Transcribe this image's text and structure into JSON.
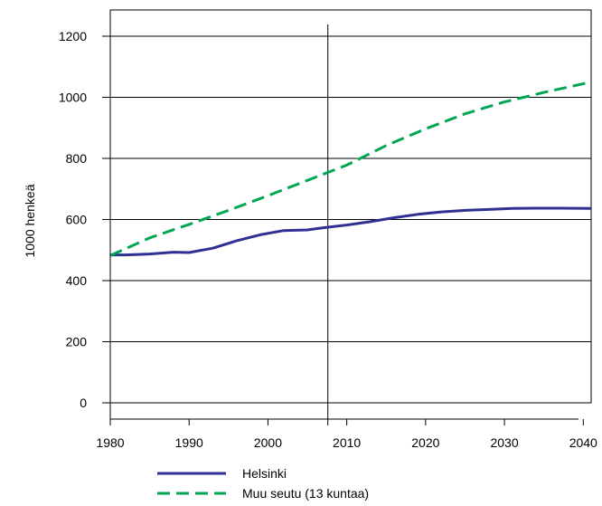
{
  "chart_data": {
    "type": "line",
    "title": "",
    "xlabel": "",
    "ylabel": "1000 henkeä",
    "xlim": [
      1980,
      2041
    ],
    "ylim": [
      0,
      1200
    ],
    "xticks": [
      1980,
      1990,
      2000,
      2010,
      2020,
      2030,
      2040
    ],
    "yticks": [
      0,
      200,
      400,
      600,
      800,
      1000,
      1200
    ],
    "grid": "horizontal",
    "reference_line_x": 2007.6,
    "legend_position": "bottom",
    "series": [
      {
        "name": "Helsinki",
        "color": "#2e3192",
        "style": "solid",
        "points": [
          [
            1980,
            484
          ],
          [
            1982,
            484
          ],
          [
            1985,
            487
          ],
          [
            1988,
            493
          ],
          [
            1990,
            492
          ],
          [
            1993,
            506
          ],
          [
            1996,
            530
          ],
          [
            1999,
            550
          ],
          [
            2002,
            564
          ],
          [
            2005,
            566
          ],
          [
            2007,
            573
          ],
          [
            2010,
            582
          ],
          [
            2013,
            593
          ],
          [
            2016,
            606
          ],
          [
            2019,
            617
          ],
          [
            2022,
            625
          ],
          [
            2025,
            630
          ],
          [
            2028,
            633
          ],
          [
            2031,
            636
          ],
          [
            2034,
            637
          ],
          [
            2037,
            637
          ],
          [
            2041,
            636
          ]
        ]
      },
      {
        "name": "Muu seutu (13 kuntaa)",
        "color": "#00a651",
        "style": "dashed",
        "points": [
          [
            1980,
            482
          ],
          [
            1985,
            540
          ],
          [
            1990,
            584
          ],
          [
            1995,
            630
          ],
          [
            2000,
            678
          ],
          [
            2005,
            728
          ],
          [
            2010,
            778
          ],
          [
            2015,
            842
          ],
          [
            2020,
            897
          ],
          [
            2025,
            946
          ],
          [
            2030,
            985
          ],
          [
            2035,
            1016
          ],
          [
            2041,
            1050
          ]
        ]
      }
    ]
  }
}
